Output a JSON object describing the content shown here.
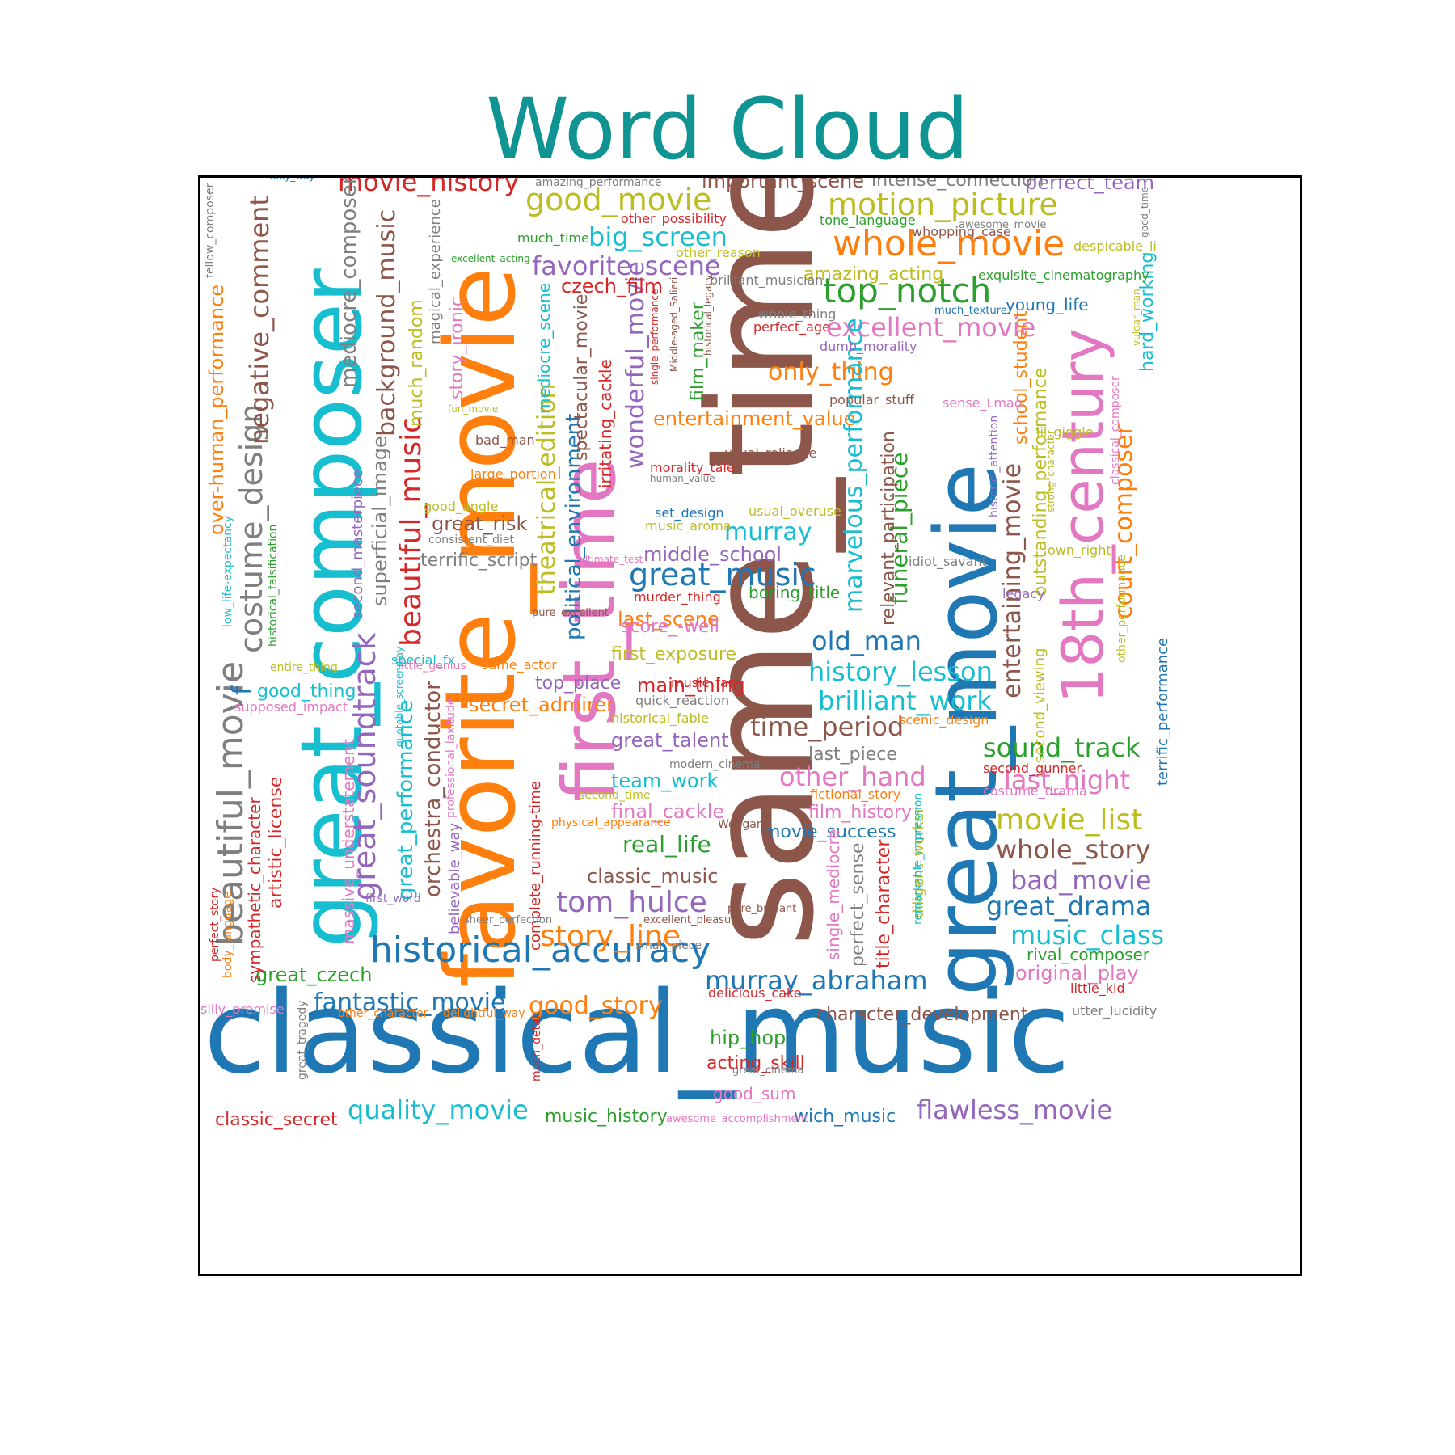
{
  "title": "Word Cloud",
  "words": [
    {
      "text": "classical_music",
      "color": "#1f77b4"
    },
    {
      "text": "same_time",
      "color": "#8c564b"
    },
    {
      "text": "favorite_movie",
      "color": "#ff7f0e"
    },
    {
      "text": "great_composer",
      "color": "#17becf"
    },
    {
      "text": "great_movie",
      "color": "#1f77b4"
    },
    {
      "text": "first_time",
      "color": "#e377c2"
    },
    {
      "text": "18th_century",
      "color": "#e377c2"
    },
    {
      "text": "historical_accuracy",
      "color": "#1f77b4"
    },
    {
      "text": "beautiful_movie",
      "color": "#7f7f7f"
    },
    {
      "text": "whole_movie",
      "color": "#ff7f0e"
    },
    {
      "text": "motion_picture",
      "color": "#bcbd22"
    },
    {
      "text": "top_notch",
      "color": "#2ca02c"
    },
    {
      "text": "good_movie",
      "color": "#bcbd22"
    },
    {
      "text": "costume_design",
      "color": "#7f7f7f"
    },
    {
      "text": "great_soundtrack",
      "color": "#9467bd"
    },
    {
      "text": "beautiful_music",
      "color": "#d62728"
    },
    {
      "text": "negative_comment",
      "color": "#8c564b"
    },
    {
      "text": "great_music",
      "color": "#1f77b4"
    },
    {
      "text": "murray_abraham",
      "color": "#1f77b4"
    },
    {
      "text": "tom_hulce",
      "color": "#9467bd"
    },
    {
      "text": "story_line",
      "color": "#ff7f0e"
    },
    {
      "text": "quality_movie",
      "color": "#17becf"
    },
    {
      "text": "flawless_movie",
      "color": "#9467bd"
    },
    {
      "text": "movie_history",
      "color": "#d62728"
    },
    {
      "text": "favorite_scene",
      "color": "#9467bd"
    },
    {
      "text": "big_screen",
      "color": "#17becf"
    },
    {
      "text": "excellent_movie",
      "color": "#e377c2"
    },
    {
      "text": "history_lesson",
      "color": "#17becf"
    },
    {
      "text": "brilliant_work",
      "color": "#17becf"
    },
    {
      "text": "old_man",
      "color": "#1f77b4"
    },
    {
      "text": "time_period",
      "color": "#8c564b"
    },
    {
      "text": "sound_track",
      "color": "#2ca02c"
    },
    {
      "text": "other_hand",
      "color": "#e377c2"
    },
    {
      "text": "last_night",
      "color": "#e377c2"
    },
    {
      "text": "movie_list",
      "color": "#bcbd22"
    },
    {
      "text": "whole_story",
      "color": "#8c564b"
    },
    {
      "text": "bad_movie",
      "color": "#9467bd"
    },
    {
      "text": "great_drama",
      "color": "#1f77b4"
    },
    {
      "text": "music_class",
      "color": "#17becf"
    },
    {
      "text": "fantastic_movie",
      "color": "#1f77b4"
    },
    {
      "text": "good_story",
      "color": "#ff7f0e"
    },
    {
      "text": "only_thing",
      "color": "#ff7f0e"
    },
    {
      "text": "court_composer",
      "color": "#ff7f0e"
    },
    {
      "text": "entertaining_movie",
      "color": "#8c564b"
    },
    {
      "text": "wonderful_movie",
      "color": "#9467bd"
    },
    {
      "text": "theatrical_edition",
      "color": "#bcbd22"
    },
    {
      "text": "background_music",
      "color": "#8c564b"
    },
    {
      "text": "mediocre_composer",
      "color": "#7f7f7f"
    },
    {
      "text": "marvelous_performance",
      "color": "#17becf"
    },
    {
      "text": "funeral_piece",
      "color": "#2ca02c"
    },
    {
      "text": "political_environment",
      "color": "#1f77b4"
    },
    {
      "text": "real_life",
      "color": "#2ca02c"
    },
    {
      "text": "classic_music",
      "color": "#8c564b"
    },
    {
      "text": "great_czech",
      "color": "#2ca02c"
    },
    {
      "text": "great_performance",
      "color": "#17becf"
    },
    {
      "text": "orchestra_conductor",
      "color": "#8c564b"
    },
    {
      "text": "superficial_image",
      "color": "#7f7f7f"
    },
    {
      "text": "over-human_performance",
      "color": "#ff7f0e"
    },
    {
      "text": "entertainment_value",
      "color": "#ff7f0e"
    },
    {
      "text": "middle_school",
      "color": "#9467bd"
    },
    {
      "text": "murray",
      "color": "#17becf"
    },
    {
      "text": "great_risk",
      "color": "#8c564b"
    },
    {
      "text": "terrific_script",
      "color": "#7f7f7f"
    },
    {
      "text": "secret_admirer",
      "color": "#ff7f0e"
    },
    {
      "text": "main_thing",
      "color": "#d62728"
    },
    {
      "text": "great_talent",
      "color": "#9467bd"
    },
    {
      "text": "team_work",
      "color": "#17becf"
    },
    {
      "text": "final_cackle",
      "color": "#e377c2"
    },
    {
      "text": "last_scene",
      "color": "#ff7f0e"
    },
    {
      "text": "first_exposure",
      "color": "#bcbd22"
    },
    {
      "text": "score_-well",
      "color": "#e377c2"
    },
    {
      "text": "top_place",
      "color": "#9467bd"
    },
    {
      "text": "czech_film",
      "color": "#d62728"
    },
    {
      "text": "good_thing",
      "color": "#17becf"
    },
    {
      "text": "movie_success",
      "color": "#1f77b4"
    },
    {
      "text": "film_history",
      "color": "#e377c2"
    },
    {
      "text": "last_piece",
      "color": "#7f7f7f"
    },
    {
      "text": "character_development",
      "color": "#8c564b"
    },
    {
      "text": "original_play",
      "color": "#e377c2"
    },
    {
      "text": "rival_composer",
      "color": "#2ca02c"
    },
    {
      "text": "hip_hop",
      "color": "#2ca02c"
    },
    {
      "text": "acting_skill",
      "color": "#d62728"
    },
    {
      "text": "good_sum",
      "color": "#e377c2"
    },
    {
      "text": "wich_music",
      "color": "#1f77b4"
    },
    {
      "text": "music_history",
      "color": "#2ca02c"
    },
    {
      "text": "classic_secret",
      "color": "#d62728"
    },
    {
      "text": "important_scene",
      "color": "#8c564b"
    },
    {
      "text": "intense_connection",
      "color": "#7f7f7f"
    },
    {
      "text": "perfect_team",
      "color": "#9467bd"
    },
    {
      "text": "amazing_acting",
      "color": "#bcbd22"
    },
    {
      "text": "young_life",
      "color": "#1f77b4"
    },
    {
      "text": "outstanding_performance",
      "color": "#bcbd22"
    },
    {
      "text": "school_student",
      "color": "#ff7f0e"
    },
    {
      "text": "hard_working",
      "color": "#17becf"
    },
    {
      "text": "relevant_participation",
      "color": "#8c564b"
    },
    {
      "text": "irritating_cackle",
      "color": "#d62728"
    },
    {
      "text": "spectacular_movie",
      "color": "#8c564b"
    },
    {
      "text": "film_maker",
      "color": "#2ca02c"
    },
    {
      "text": "much_random",
      "color": "#bcbd22"
    },
    {
      "text": "magical_experience",
      "color": "#7f7f7f"
    },
    {
      "text": "story_ironic",
      "color": "#e377c2"
    },
    {
      "text": "mediocre_scene",
      "color": "#17becf"
    },
    {
      "text": "second_masterpiece",
      "color": "#9467bd"
    },
    {
      "text": "artistic_license",
      "color": "#d62728"
    },
    {
      "text": "sympathetic_character",
      "color": "#d62728"
    },
    {
      "text": "perfect_sense",
      "color": "#7f7f7f"
    },
    {
      "text": "title_character",
      "color": "#d62728"
    },
    {
      "text": "diligent_worker",
      "color": "#bcbd22"
    },
    {
      "text": "single_mediocre",
      "color": "#e377c2"
    },
    {
      "text": "second_viewing",
      "color": "#bcbd22"
    },
    {
      "text": "terrific_performance",
      "color": "#1f77b4"
    },
    {
      "text": "complete_running-time",
      "color": "#d62728"
    },
    {
      "text": "massive_understatement",
      "color": "#e377c2"
    },
    {
      "text": "believable_way",
      "color": "#9467bd"
    },
    {
      "text": "f",
      "color": "#1f77b4"
    },
    {
      "text": "boring_title",
      "color": "#2ca02c"
    },
    {
      "text": "much_time",
      "color": "#2ca02c"
    },
    {
      "text": "other_reason",
      "color": "#bcbd22"
    },
    {
      "text": "other_possibility",
      "color": "#d62728"
    },
    {
      "text": "brilliant_musician",
      "color": "#7f7f7f"
    },
    {
      "text": "whopping_case",
      "color": "#8c564b"
    },
    {
      "text": "tone_language",
      "color": "#2ca02c"
    },
    {
      "text": "despicable_li",
      "color": "#bcbd22"
    },
    {
      "text": "exquisite_cinematography",
      "color": "#2ca02c"
    },
    {
      "text": "whole_thing",
      "color": "#7f7f7f"
    },
    {
      "text": "perfect_age",
      "color": "#d62728"
    },
    {
      "text": "dumb_morality",
      "color": "#9467bd"
    },
    {
      "text": "popular_stuff",
      "color": "#8c564b"
    },
    {
      "text": "sense_Lmao",
      "color": "#e377c2"
    },
    {
      "text": "lil_giggle",
      "color": "#bcbd22"
    },
    {
      "text": "bad_man",
      "color": "#8c564b"
    },
    {
      "text": "large_portion",
      "color": "#ff7f0e"
    },
    {
      "text": "good_angle",
      "color": "#bcbd22"
    },
    {
      "text": "usual_reliance",
      "color": "#8c564b"
    },
    {
      "text": "morality_tale",
      "color": "#d62728"
    },
    {
      "text": "set_design",
      "color": "#1f77b4"
    },
    {
      "text": "usual_overuse",
      "color": "#bcbd22"
    },
    {
      "text": "music_aroma",
      "color": "#bcbd22"
    },
    {
      "text": "consistent_diet",
      "color": "#7f7f7f"
    },
    {
      "text": "own_right",
      "color": "#bcbd22"
    },
    {
      "text": "idiot_savant",
      "color": "#7f7f7f"
    },
    {
      "text": "legacy",
      "color": "#9467bd"
    },
    {
      "text": "murder_thing",
      "color": "#d62728"
    },
    {
      "text": "pure_excellent",
      "color": "#8c564b"
    },
    {
      "text": "special_fx",
      "color": "#17becf"
    },
    {
      "text": "entire_thing",
      "color": "#bcbd22"
    },
    {
      "text": "little_genius",
      "color": "#e377c2"
    },
    {
      "text": "same_actor",
      "color": "#ff7f0e"
    },
    {
      "text": "supposed_impact",
      "color": "#e377c2"
    },
    {
      "text": "quick_reaction",
      "color": "#7f7f7f"
    },
    {
      "text": "music_fan",
      "color": "#d62728"
    },
    {
      "text": "historical_fable",
      "color": "#bcbd22"
    },
    {
      "text": "scenic_design",
      "color": "#ff7f0e"
    },
    {
      "text": "second_gunner",
      "color": "#d62728"
    },
    {
      "text": "fictional_story",
      "color": "#ff7f0e"
    },
    {
      "text": "second_time",
      "color": "#bcbd22"
    },
    {
      "text": "modern_cinema",
      "color": "#7f7f7f"
    },
    {
      "text": "costume_drama",
      "color": "#e377c2"
    },
    {
      "text": "physical_appearance",
      "color": "#ff7f0e"
    },
    {
      "text": "Wolfgang",
      "color": "#8c564b"
    },
    {
      "text": "first_word",
      "color": "#9467bd"
    },
    {
      "text": "sheer_perfection",
      "color": "#7f7f7f"
    },
    {
      "text": "excellent_pleasure",
      "color": "#8c564b"
    },
    {
      "text": "pure_brilliant",
      "color": "#8c564b"
    },
    {
      "text": "small_piece",
      "color": "#7f7f7f"
    },
    {
      "text": "delicious_cake",
      "color": "#d62728"
    },
    {
      "text": "little_kid",
      "color": "#d62728"
    },
    {
      "text": "utter_lucidity",
      "color": "#7f7f7f"
    },
    {
      "text": "other_character",
      "color": "#ff7f0e"
    },
    {
      "text": "delightful_way",
      "color": "#ff7f0e"
    },
    {
      "text": "silly_premise",
      "color": "#e377c2"
    },
    {
      "text": "great_cinema",
      "color": "#7f7f7f"
    },
    {
      "text": "awesome_accomplishment",
      "color": "#e377c2"
    },
    {
      "text": "only_way",
      "color": "#1f77b4"
    },
    {
      "text": "amazing_performance",
      "color": "#7f7f7f"
    },
    {
      "text": "awesome_movie",
      "color": "#7f7f7f"
    },
    {
      "text": "good_time",
      "color": "#7f7f7f"
    },
    {
      "text": "much_texture",
      "color": "#1f77b4"
    },
    {
      "text": "excellent_acting",
      "color": "#2ca02c"
    },
    {
      "text": "fellow_composer",
      "color": "#7f7f7f"
    },
    {
      "text": "fun_movie",
      "color": "#bcbd22"
    },
    {
      "text": "ultimate_test",
      "color": "#e377c2"
    },
    {
      "text": "human_value",
      "color": "#7f7f7f"
    },
    {
      "text": "strong_character",
      "color": "#bcbd22"
    },
    {
      "text": "single_performance",
      "color": "#d62728"
    },
    {
      "text": "Middle-aged_Salieri",
      "color": "#8c564b"
    },
    {
      "text": "historical_legacy",
      "color": "#8c564b"
    },
    {
      "text": "historicl_attention",
      "color": "#9467bd"
    },
    {
      "text": "classical_composer",
      "color": "#e377c2"
    },
    {
      "text": "vulgar_man",
      "color": "#bcbd22"
    },
    {
      "text": "other_performance",
      "color": "#bcbd22"
    },
    {
      "text": "low_life-expectancy",
      "color": "#17becf"
    },
    {
      "text": "historical_falsification",
      "color": "#2ca02c"
    },
    {
      "text": "quotable_screenplay",
      "color": "#17becf"
    },
    {
      "text": "professional_laxitude",
      "color": "#e377c2"
    },
    {
      "text": "remarkable_impression",
      "color": "#17becf"
    },
    {
      "text": "much_detail",
      "color": "#d62728"
    },
    {
      "text": "great_tragedy",
      "color": "#7f7f7f"
    },
    {
      "text": "perfect_story",
      "color": "#d62728"
    },
    {
      "text": "body_language",
      "color": "#ff7f0e"
    }
  ]
}
